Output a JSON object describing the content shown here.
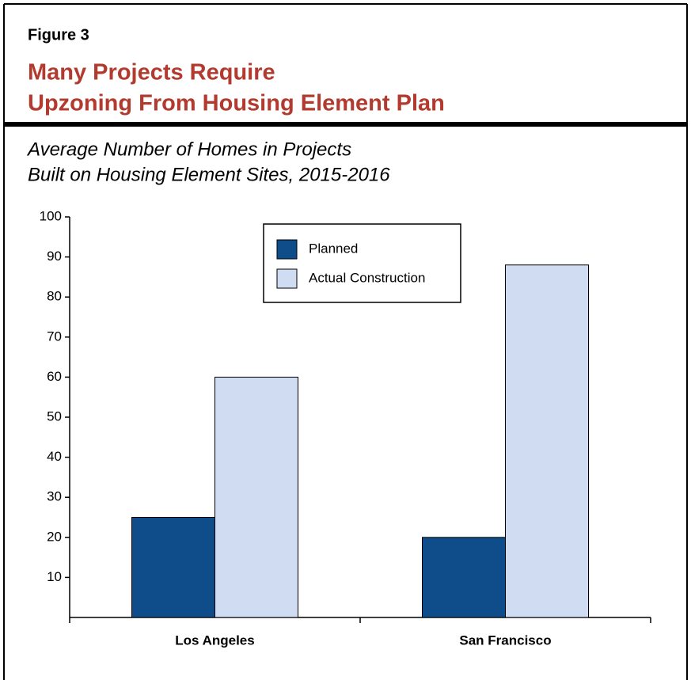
{
  "chart_data": {
    "type": "bar",
    "figure_label": "Figure 3",
    "title": [
      "Many Projects Require",
      "Upzoning From Housing Element Plan"
    ],
    "subtitle": [
      "Average Number of Homes in Projects",
      "Built on Housing Element Sites, 2015-2016"
    ],
    "categories": [
      "Los Angeles",
      "San Francisco"
    ],
    "series": [
      {
        "name": "Planned",
        "color": "#0f4c8a",
        "values": [
          25,
          20
        ]
      },
      {
        "name": "Actual Construction",
        "color": "#cfdcf2",
        "values": [
          60,
          88
        ]
      }
    ],
    "ylim": [
      0,
      100
    ],
    "yticks": [
      10,
      20,
      30,
      40,
      50,
      60,
      70,
      80,
      90,
      100
    ],
    "legend": "top-center"
  }
}
